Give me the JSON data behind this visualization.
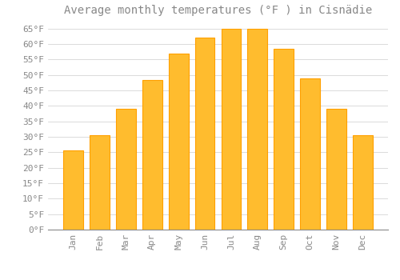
{
  "title": "Average monthly temperatures (°F ) in Cisnädie",
  "months": [
    "Jan",
    "Feb",
    "Mar",
    "Apr",
    "May",
    "Jun",
    "Jul",
    "Aug",
    "Sep",
    "Oct",
    "Nov",
    "Dec"
  ],
  "values": [
    25.5,
    30.5,
    39.0,
    48.5,
    57.0,
    62.0,
    65.0,
    65.0,
    58.5,
    49.0,
    39.0,
    30.5
  ],
  "bar_color": "#FFBC2E",
  "bar_edge_color": "#FFA000",
  "background_color": "#FFFFFF",
  "grid_color": "#CCCCCC",
  "text_color": "#888888",
  "ylim": [
    0,
    67
  ],
  "yticks": [
    0,
    5,
    10,
    15,
    20,
    25,
    30,
    35,
    40,
    45,
    50,
    55,
    60,
    65
  ],
  "title_fontsize": 10,
  "tick_fontsize": 8,
  "font_family": "monospace"
}
